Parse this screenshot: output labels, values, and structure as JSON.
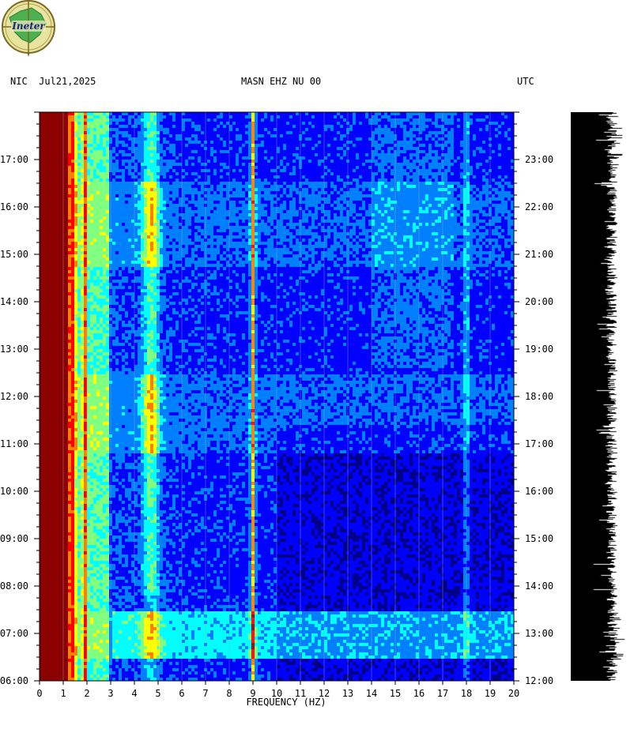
{
  "header": {
    "left": "NIC  Jul21,2025",
    "center": "MASN EHZ NU 00",
    "right": "UTC"
  },
  "logo": {
    "text": "Ineter"
  },
  "chart_data": {
    "type": "heatmap",
    "title": "MASN EHZ NU 00",
    "xlabel": "FREQUENCY (HZ)",
    "x_ticks": [
      "0",
      "1",
      "2",
      "3",
      "4",
      "5",
      "6",
      "7",
      "8",
      "9",
      "10",
      "11",
      "12",
      "13",
      "14",
      "15",
      "16",
      "17",
      "18",
      "19",
      "20"
    ],
    "xlim": [
      0,
      20
    ],
    "left_time_labels": [
      "17:00",
      "16:00",
      "15:00",
      "14:00",
      "13:00",
      "12:00",
      "11:00",
      "10:00",
      "09:00",
      "08:00",
      "07:00",
      "06:00"
    ],
    "right_time_labels": [
      "23:00",
      "22:00",
      "21:00",
      "20:00",
      "19:00",
      "18:00",
      "17:00",
      "16:00",
      "15:00",
      "14:00",
      "13:00",
      "12:00"
    ],
    "time_range_local": [
      "06:00",
      "18:00"
    ],
    "time_range_utc": [
      "12:00",
      "00:00"
    ],
    "colormap": [
      "#00008b",
      "#0000ff",
      "#0080ff",
      "#00ffff",
      "#80ff80",
      "#ffff00",
      "#ff8000",
      "#ff0000",
      "#8b0000"
    ],
    "persistent_bands_hz": [
      0.5,
      0.8,
      1.5,
      1.9,
      4.7,
      9.0,
      18.0
    ],
    "noisy_periods_local": [
      "06:15-07:00",
      "10:30-11:30",
      "15:00-16:30"
    ]
  }
}
